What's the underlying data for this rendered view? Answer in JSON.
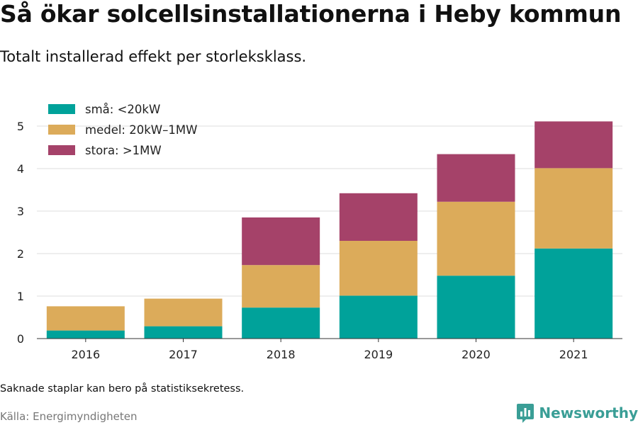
{
  "header": {
    "title": "Så ökar solcellsinstallationerna i Heby kommun",
    "subtitle": "Totalt installerad effekt per storleksklass."
  },
  "footer": {
    "note": "Saknade staplar kan bero på statistiksekretess.",
    "source": "Källa: Energimyndigheten",
    "brand": "Newsworthy",
    "brand_icon": "bar-chart-logo-icon"
  },
  "colors": {
    "sma": "#00a29a",
    "medel": "#dcab5a",
    "stora": "#a54269",
    "grid": "#dddddd",
    "axis": "#333333",
    "brand": "#3a9e96"
  },
  "chart_data": {
    "type": "bar",
    "stacked": true,
    "categories": [
      "2016",
      "2017",
      "2018",
      "2019",
      "2020",
      "2021"
    ],
    "series": [
      {
        "name": "små: <20kW",
        "color": "#00a29a",
        "values": [
          0.19,
          0.29,
          0.73,
          1.01,
          1.48,
          2.12
        ]
      },
      {
        "name": "medel: 20kW–1MW",
        "color": "#dcab5a",
        "values": [
          0.57,
          0.65,
          1.0,
          1.29,
          1.74,
          1.89
        ]
      },
      {
        "name": "stora: >1MW",
        "color": "#a54269",
        "values": [
          0.0,
          0.0,
          1.12,
          1.12,
          1.12,
          1.1
        ]
      }
    ],
    "yticks": [
      0,
      1,
      2,
      3,
      4,
      5
    ],
    "ylim": [
      0,
      5.3
    ],
    "grid": true,
    "legend_position": "top-left"
  }
}
